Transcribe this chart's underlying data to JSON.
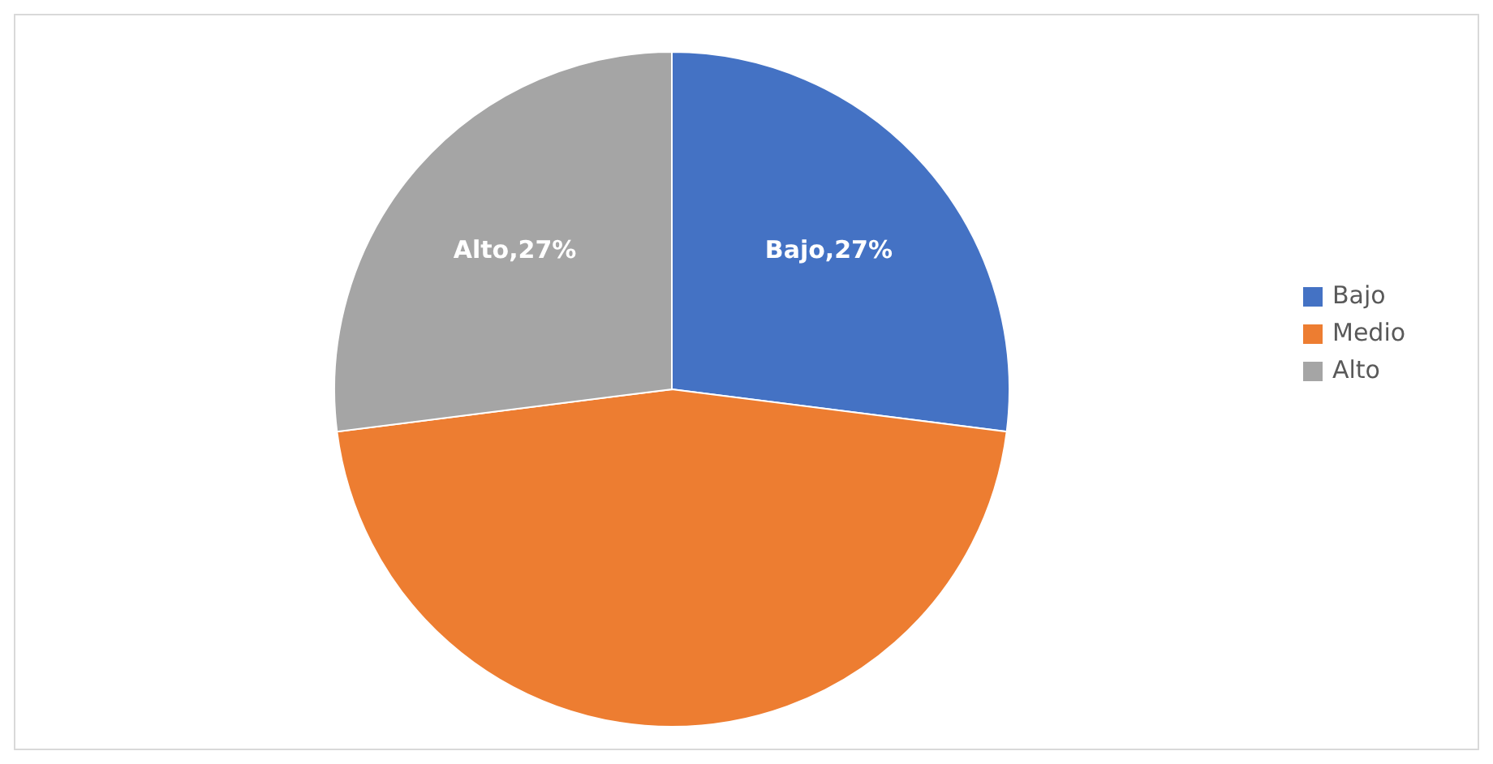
{
  "chart_data": {
    "type": "pie",
    "categories": [
      "Bajo",
      "Medio",
      "Alto"
    ],
    "values": [
      27,
      46,
      27
    ],
    "colors": [
      "#4472c4",
      "#ed7d31",
      "#a5a5a5"
    ],
    "value_labels": [
      "Bajo,27%",
      null,
      "Alto,27%"
    ],
    "legend": "right"
  }
}
